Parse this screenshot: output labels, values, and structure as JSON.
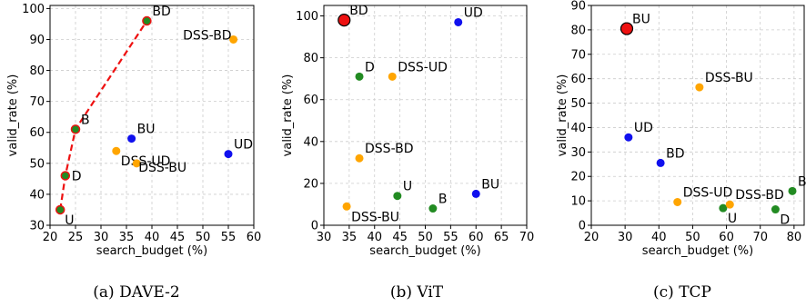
{
  "colors": {
    "green": "#228b22",
    "blue": "#1010ee",
    "orange": "#ffa500",
    "red": "#ee1111",
    "pareto": "#ee1111",
    "grid": "#cccccc"
  },
  "chart_data": [
    {
      "type": "scatter",
      "caption": "(a) DAVE-2",
      "xlabel": "search_budget (%)",
      "ylabel": "valid_rate (%)",
      "xlim": [
        20,
        60
      ],
      "ylim": [
        30,
        101
      ],
      "xticks": [
        20,
        25,
        30,
        35,
        40,
        45,
        50,
        55,
        60
      ],
      "yticks": [
        30,
        40,
        50,
        60,
        70,
        80,
        90,
        100
      ],
      "grid": true,
      "pareto_front": [
        "U",
        "D",
        "B",
        "BD"
      ],
      "points": [
        {
          "label": "U",
          "x": 22,
          "y": 35,
          "color": "green",
          "pareto": true,
          "pos": "below-right"
        },
        {
          "label": "D",
          "x": 23,
          "y": 46,
          "color": "green",
          "pareto": true,
          "pos": "right"
        },
        {
          "label": "B",
          "x": 25,
          "y": 61,
          "color": "green",
          "pareto": true,
          "pos": "above-right"
        },
        {
          "label": "BD",
          "x": 39,
          "y": 96,
          "color": "green",
          "pareto": true,
          "pos": "above-right"
        },
        {
          "label": "BU",
          "x": 36,
          "y": 58,
          "color": "blue",
          "pos": "above-right"
        },
        {
          "label": "UD",
          "x": 55,
          "y": 53,
          "color": "blue",
          "pos": "above-right"
        },
        {
          "label": "DSS-UD",
          "x": 33,
          "y": 54,
          "color": "orange",
          "pos": "below-right"
        },
        {
          "label": "DSS-BU",
          "x": 37,
          "y": 50,
          "color": "orange",
          "pos": "right-low"
        },
        {
          "label": "DSS-BD",
          "x": 56,
          "y": 90,
          "color": "orange",
          "pos": "left"
        }
      ]
    },
    {
      "type": "scatter",
      "caption": "(b) ViT",
      "xlabel": "search_budget (%)",
      "ylabel": "valid_rate (%)",
      "xlim": [
        30,
        70
      ],
      "ylim": [
        0,
        105
      ],
      "xticks": [
        30,
        35,
        40,
        45,
        50,
        55,
        60,
        65,
        70
      ],
      "yticks": [
        0,
        20,
        40,
        60,
        80,
        100
      ],
      "grid": true,
      "points": [
        {
          "label": "BD",
          "x": 34,
          "y": 98,
          "color": "red",
          "highlight": true,
          "pos": "above-right"
        },
        {
          "label": "UD",
          "x": 56.5,
          "y": 97,
          "color": "blue",
          "pos": "above-right"
        },
        {
          "label": "D",
          "x": 37,
          "y": 71,
          "color": "green",
          "pos": "above-right"
        },
        {
          "label": "DSS-UD",
          "x": 43.5,
          "y": 71,
          "color": "orange",
          "pos": "above-right"
        },
        {
          "label": "DSS-BD",
          "x": 37,
          "y": 32,
          "color": "orange",
          "pos": "above-right"
        },
        {
          "label": "U",
          "x": 44.5,
          "y": 14,
          "color": "green",
          "pos": "above-right"
        },
        {
          "label": "B",
          "x": 51.5,
          "y": 8,
          "color": "green",
          "pos": "above-right"
        },
        {
          "label": "BU",
          "x": 60,
          "y": 15,
          "color": "blue",
          "pos": "above-right"
        },
        {
          "label": "DSS-BU",
          "x": 34.5,
          "y": 9,
          "color": "orange",
          "pos": "below-right"
        }
      ]
    },
    {
      "type": "scatter",
      "caption": "(c) TCP",
      "xlabel": "search_budget (%)",
      "ylabel": "valid_rate (%)",
      "xlim": [
        20,
        83
      ],
      "ylim": [
        0,
        90
      ],
      "xticks": [
        20,
        30,
        40,
        50,
        60,
        70,
        80
      ],
      "yticks": [
        0,
        10,
        20,
        30,
        40,
        50,
        60,
        70,
        80,
        90
      ],
      "grid": true,
      "points": [
        {
          "label": "BU",
          "x": 30.5,
          "y": 80.5,
          "color": "red",
          "highlight": true,
          "pos": "above-right"
        },
        {
          "label": "DSS-BU",
          "x": 52,
          "y": 56.5,
          "color": "orange",
          "pos": "above-right"
        },
        {
          "label": "UD",
          "x": 31,
          "y": 36,
          "color": "blue",
          "pos": "above-right"
        },
        {
          "label": "BD",
          "x": 40.5,
          "y": 25.5,
          "color": "blue",
          "pos": "above-right"
        },
        {
          "label": "DSS-UD",
          "x": 45.5,
          "y": 9.5,
          "color": "orange",
          "pos": "above-right"
        },
        {
          "label": "U",
          "x": 59,
          "y": 7,
          "color": "green",
          "pos": "below-right"
        },
        {
          "label": "DSS-BD",
          "x": 61,
          "y": 8.5,
          "color": "orange",
          "pos": "above-right"
        },
        {
          "label": "D",
          "x": 74.5,
          "y": 6.5,
          "color": "green",
          "pos": "below-right"
        },
        {
          "label": "B",
          "x": 79.5,
          "y": 14,
          "color": "green",
          "pos": "above-right"
        }
      ]
    }
  ]
}
